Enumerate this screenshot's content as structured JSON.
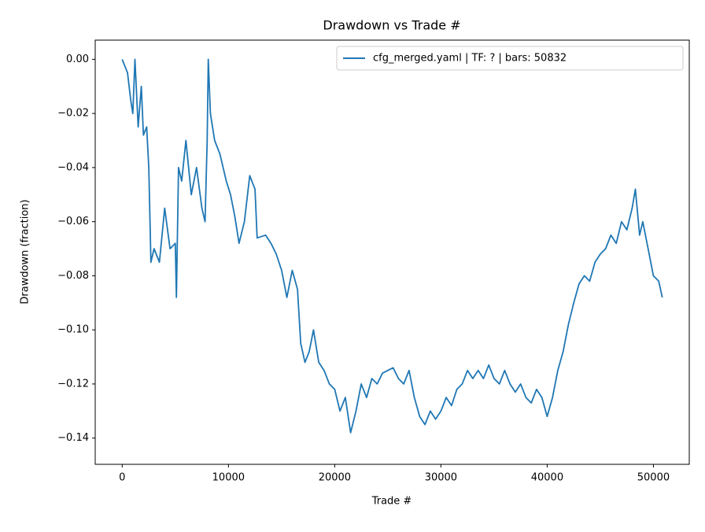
{
  "chart_data": {
    "type": "line",
    "title": "Drawdown vs Trade #",
    "x_label": "Trade #",
    "y_label": "Drawdown (fraction)",
    "x": [
      0,
      500,
      800,
      1000,
      1200,
      1500,
      1800,
      2000,
      2300,
      2500,
      2700,
      3000,
      3500,
      4000,
      4500,
      5000,
      5100,
      5300,
      5600,
      6000,
      6500,
      7000,
      7500,
      7800,
      8000,
      8100,
      8300,
      8700,
      9200,
      9800,
      10200,
      10600,
      11000,
      11500,
      12000,
      12500,
      12700,
      13500,
      14000,
      14500,
      15000,
      15500,
      16000,
      16500,
      16800,
      17200,
      17600,
      18000,
      18500,
      19000,
      19500,
      20000,
      20500,
      21000,
      21500,
      22000,
      22500,
      23000,
      23500,
      24000,
      24500,
      25000,
      25500,
      26000,
      26500,
      27000,
      27500,
      28000,
      28500,
      29000,
      29500,
      30000,
      30500,
      31000,
      31500,
      32000,
      32500,
      33000,
      33500,
      34000,
      34500,
      35000,
      35500,
      36000,
      36500,
      37000,
      37500,
      38000,
      38500,
      39000,
      39500,
      40000,
      40500,
      41000,
      41500,
      42000,
      42500,
      43000,
      43500,
      44000,
      44500,
      45000,
      45500,
      46000,
      46500,
      47000,
      47500,
      48000,
      48300,
      48700,
      49000,
      49500,
      50000,
      50500,
      50832
    ],
    "series": [
      {
        "name": "cfg_merged.yaml | TF: ? | bars: 50832",
        "color": "#1f77b4",
        "values": [
          0,
          -0.005,
          -0.015,
          -0.02,
          0,
          -0.025,
          -0.01,
          -0.028,
          -0.025,
          -0.04,
          -0.075,
          -0.07,
          -0.075,
          -0.055,
          -0.07,
          -0.068,
          -0.088,
          -0.04,
          -0.045,
          -0.03,
          -0.05,
          -0.04,
          -0.055,
          -0.06,
          -0.03,
          0,
          -0.02,
          -0.03,
          -0.035,
          -0.045,
          -0.05,
          -0.058,
          -0.068,
          -0.06,
          -0.043,
          -0.048,
          -0.066,
          -0.065,
          -0.068,
          -0.072,
          -0.078,
          -0.088,
          -0.078,
          -0.085,
          -0.105,
          -0.112,
          -0.108,
          -0.1,
          -0.112,
          -0.115,
          -0.12,
          -0.122,
          -0.13,
          -0.125,
          -0.138,
          -0.13,
          -0.12,
          -0.125,
          -0.118,
          -0.12,
          -0.116,
          -0.115,
          -0.114,
          -0.118,
          -0.12,
          -0.115,
          -0.125,
          -0.132,
          -0.135,
          -0.13,
          -0.133,
          -0.13,
          -0.125,
          -0.128,
          -0.122,
          -0.12,
          -0.115,
          -0.118,
          -0.115,
          -0.118,
          -0.113,
          -0.118,
          -0.12,
          -0.115,
          -0.12,
          -0.123,
          -0.12,
          -0.125,
          -0.127,
          -0.122,
          -0.125,
          -0.132,
          -0.125,
          -0.115,
          -0.108,
          -0.098,
          -0.09,
          -0.083,
          -0.08,
          -0.082,
          -0.075,
          -0.072,
          -0.07,
          -0.065,
          -0.068,
          -0.06,
          -0.063,
          -0.055,
          -0.048,
          -0.065,
          -0.06,
          -0.07,
          -0.08,
          -0.082,
          -0.088
        ]
      }
    ],
    "xlim": [
      -2542,
      53374
    ],
    "ylim": [
      -0.1497,
      0.0071
    ],
    "xticks": [
      0,
      10000,
      20000,
      30000,
      40000,
      50000
    ],
    "yticks": [
      {
        "value": 0,
        "label": "0.00"
      },
      {
        "value": -0.02,
        "label": "−0.02"
      },
      {
        "value": -0.04,
        "label": "−0.04"
      },
      {
        "value": -0.06,
        "label": "−0.06"
      },
      {
        "value": -0.08,
        "label": "−0.08"
      },
      {
        "value": -0.1,
        "label": "−0.10"
      },
      {
        "value": -0.12,
        "label": "−0.12"
      },
      {
        "value": -0.14,
        "label": "−0.14"
      }
    ],
    "legend": "upper right"
  }
}
